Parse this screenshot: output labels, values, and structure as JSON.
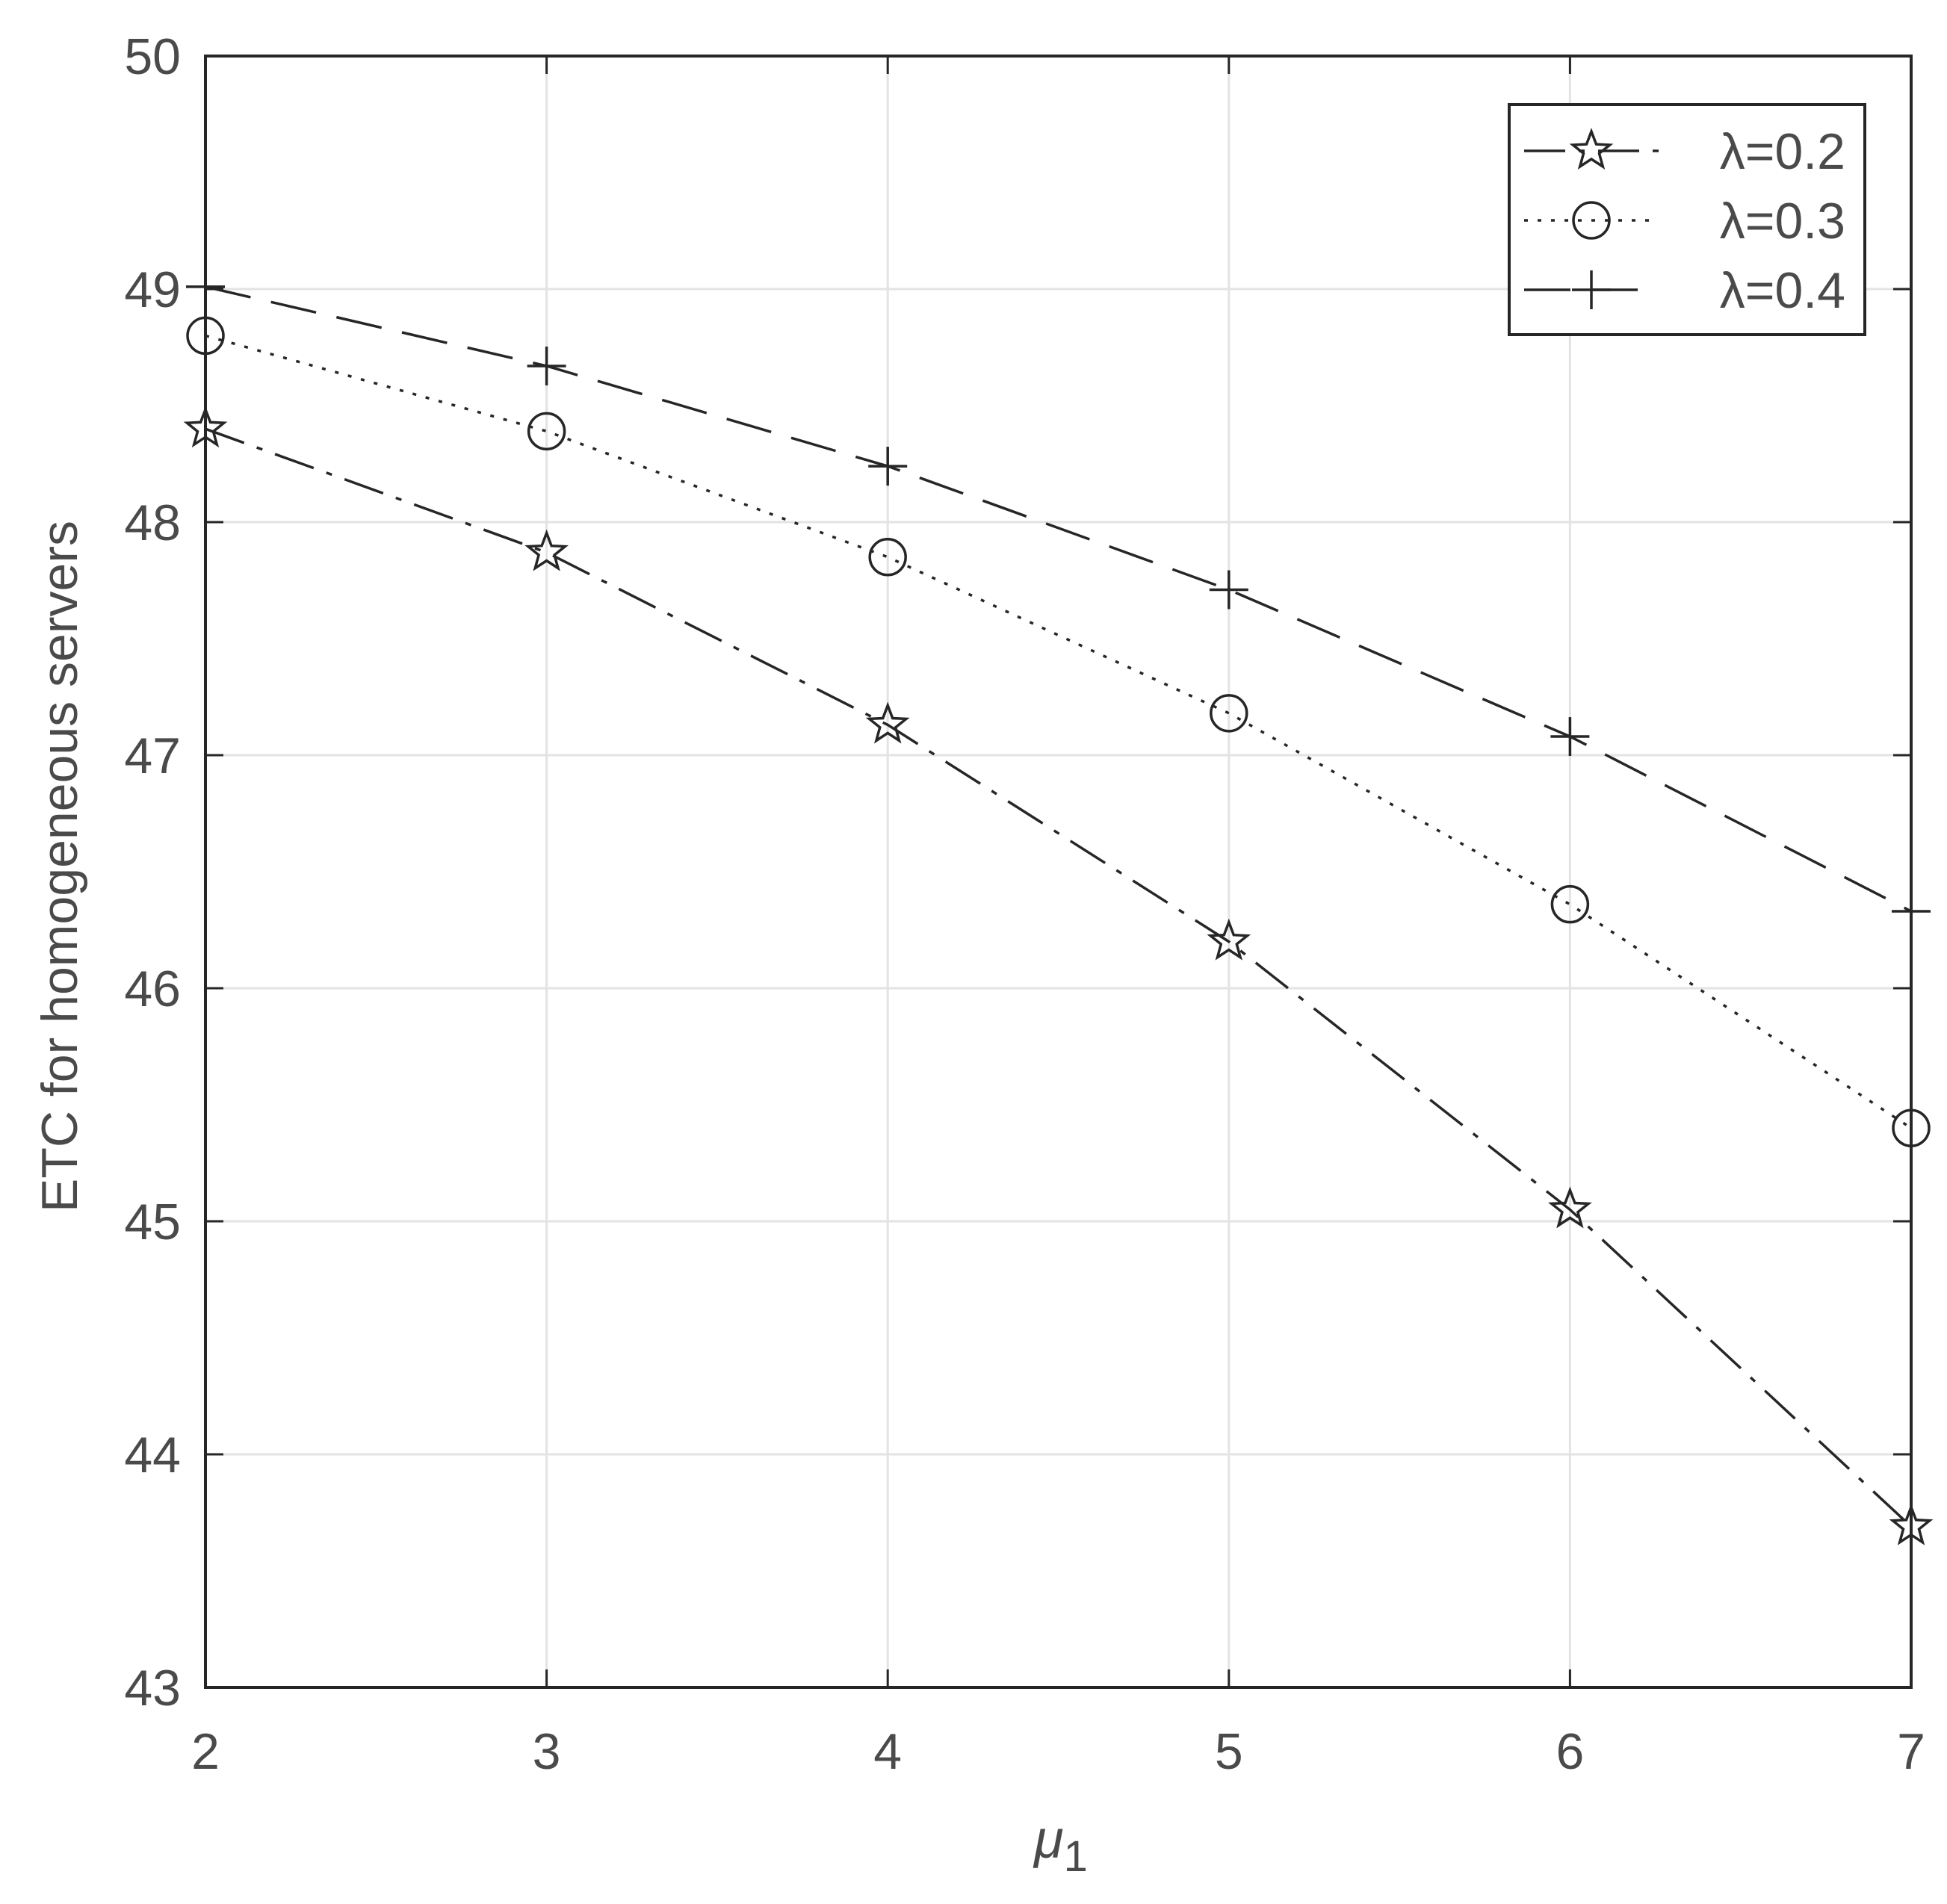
{
  "chart_data": {
    "type": "line",
    "xlabel": "μ",
    "xlabel_subscript": "1",
    "ylabel": "ETC for homogeneous servers",
    "xlim": [
      2,
      7
    ],
    "ylim": [
      43,
      50
    ],
    "x_ticks": [
      "2",
      "3",
      "4",
      "5",
      "6",
      "7"
    ],
    "y_ticks": [
      "43",
      "44",
      "45",
      "46",
      "47",
      "48",
      "49",
      "50"
    ],
    "grid": true,
    "legend_position": "top-right",
    "x": [
      2,
      3,
      4,
      5,
      6,
      7
    ],
    "series": [
      {
        "name": "λ=0.2",
        "marker": "star",
        "line_style": "dash-dot",
        "values": [
          48.4,
          47.87,
          47.13,
          46.2,
          45.05,
          43.69
        ]
      },
      {
        "name": "λ=0.3",
        "marker": "circle",
        "line_style": "dotted",
        "values": [
          48.8,
          48.39,
          47.85,
          47.18,
          46.36,
          45.4
        ]
      },
      {
        "name": "λ=0.4",
        "marker": "plus",
        "line_style": "dashed",
        "values": [
          49.01,
          48.67,
          48.24,
          47.71,
          47.08,
          46.33
        ]
      }
    ],
    "colors": {
      "axis": "#262626",
      "grid": "#e3e3e3",
      "text": "#4a4a4a",
      "series": "#262626"
    }
  }
}
